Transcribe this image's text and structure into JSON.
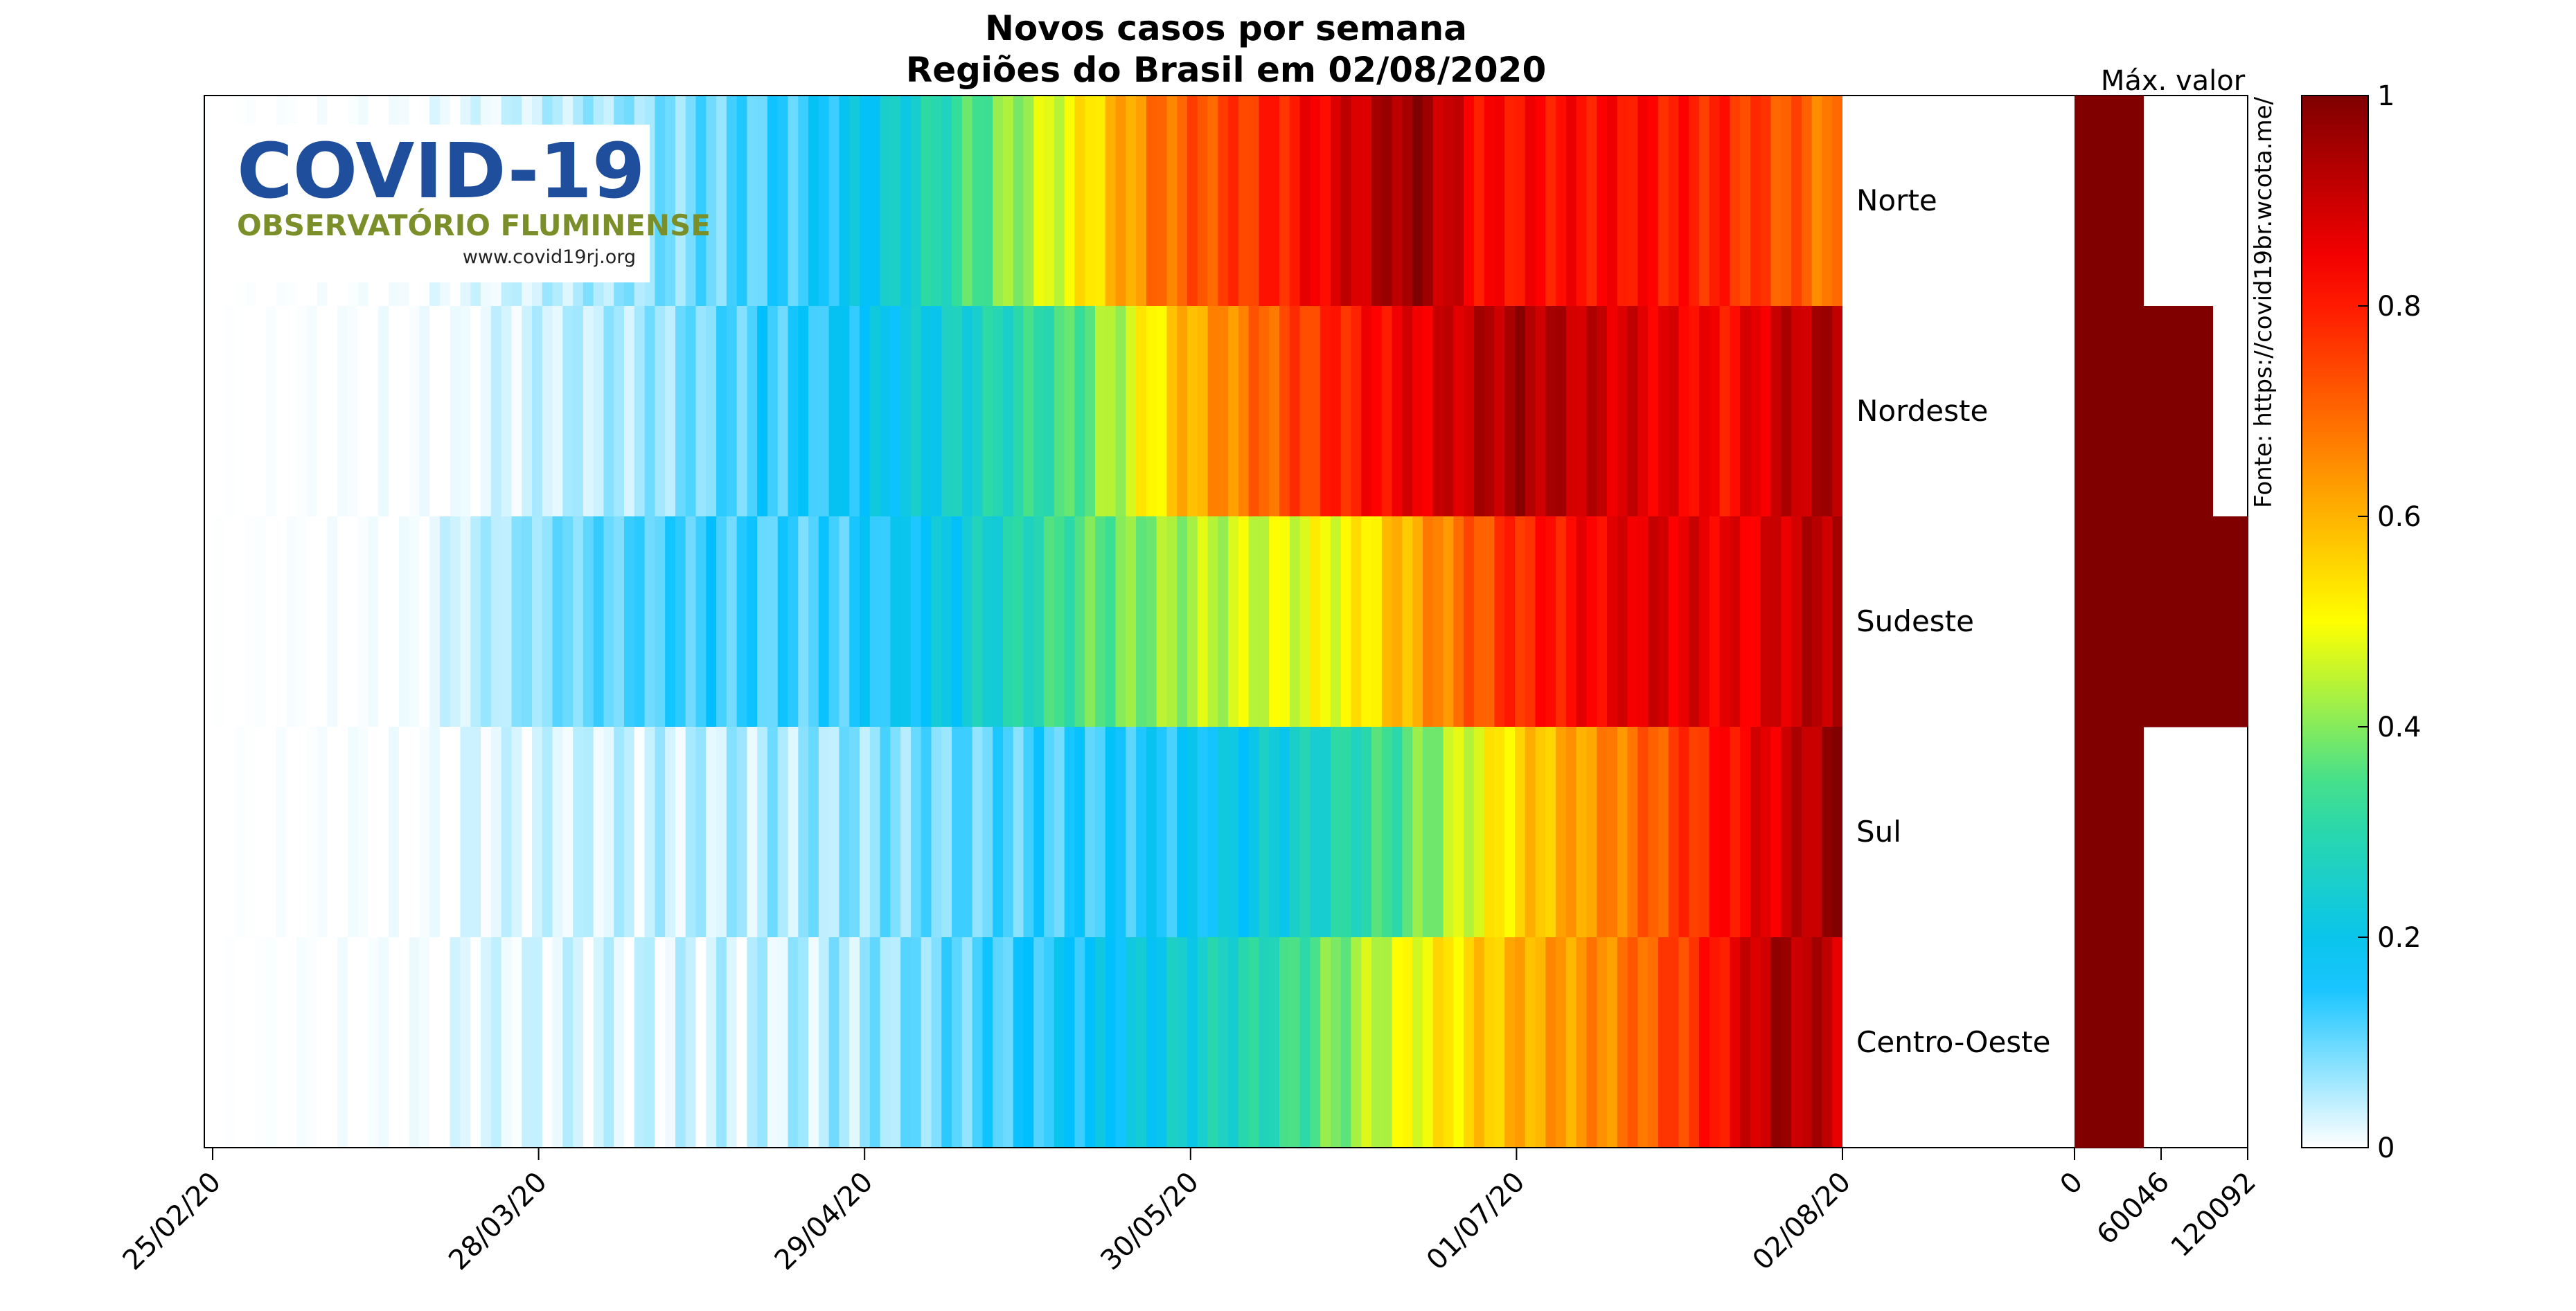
{
  "chart_data": [
    {
      "type": "heatmap",
      "title": "Novos casos por semana",
      "subtitle": "Regiões do Brasil em 02/08/2020",
      "rows": [
        "Norte",
        "Nordeste",
        "Sudeste",
        "Sul",
        "Centro-Oeste"
      ],
      "x_tick_labels": [
        "25/02/20",
        "28/03/20",
        "29/04/20",
        "30/05/20",
        "01/07/20",
        "02/08/20"
      ],
      "x_range": [
        "25/02/20",
        "02/08/20"
      ],
      "value_range": [
        0,
        1
      ],
      "colormap": [
        "#ffffff",
        "#00bfff",
        "#33dd99",
        "#ffff00",
        "#ff8000",
        "#ff0000",
        "#7f0000"
      ],
      "series": [
        {
          "name": "Norte",
          "keyframes": [
            [
              0,
              0
            ],
            [
              0.12,
              0
            ],
            [
              0.17,
              0.02
            ],
            [
              0.28,
              0.08
            ],
            [
              0.37,
              0.14
            ],
            [
              0.43,
              0.25
            ],
            [
              0.48,
              0.38
            ],
            [
              0.53,
              0.5
            ],
            [
              0.58,
              0.68
            ],
            [
              0.66,
              0.8
            ],
            [
              0.74,
              0.98
            ],
            [
              0.78,
              0.82
            ],
            [
              0.87,
              0.82
            ],
            [
              0.93,
              0.78
            ],
            [
              0.98,
              0.7
            ],
            [
              1,
              0.65
            ]
          ]
        },
        {
          "name": "Nordeste",
          "keyframes": [
            [
              0,
              0
            ],
            [
              0.16,
              0
            ],
            [
              0.17,
              0.02
            ],
            [
              0.27,
              0.06
            ],
            [
              0.33,
              0.12
            ],
            [
              0.38,
              0.15
            ],
            [
              0.44,
              0.22
            ],
            [
              0.53,
              0.35
            ],
            [
              0.56,
              0.45
            ],
            [
              0.6,
              0.6
            ],
            [
              0.67,
              0.75
            ],
            [
              0.73,
              0.85
            ],
            [
              0.8,
              0.95
            ],
            [
              0.87,
              0.88
            ],
            [
              0.93,
              0.82
            ],
            [
              0.96,
              0.9
            ],
            [
              1,
              0.95
            ]
          ]
        },
        {
          "name": "Sudeste",
          "keyframes": [
            [
              0,
              0
            ],
            [
              0.135,
              0
            ],
            [
              0.14,
              0.02
            ],
            [
              0.23,
              0.1
            ],
            [
              0.3,
              0.13
            ],
            [
              0.38,
              0.12
            ],
            [
              0.45,
              0.2
            ],
            [
              0.53,
              0.35
            ],
            [
              0.62,
              0.45
            ],
            [
              0.7,
              0.5
            ],
            [
              0.74,
              0.62
            ],
            [
              0.8,
              0.78
            ],
            [
              0.88,
              0.88
            ],
            [
              0.94,
              0.85
            ],
            [
              1,
              0.95
            ]
          ]
        },
        {
          "name": "Sul",
          "keyframes": [
            [
              0,
              0
            ],
            [
              0.15,
              0
            ],
            [
              0.155,
              0.02
            ],
            [
              0.3,
              0.04
            ],
            [
              0.39,
              0.07
            ],
            [
              0.46,
              0.1
            ],
            [
              0.53,
              0.13
            ],
            [
              0.6,
              0.16
            ],
            [
              0.67,
              0.25
            ],
            [
              0.73,
              0.35
            ],
            [
              0.8,
              0.55
            ],
            [
              0.87,
              0.68
            ],
            [
              0.93,
              0.82
            ],
            [
              0.97,
              0.9
            ],
            [
              1,
              0.98
            ]
          ]
        },
        {
          "name": "Centro-Oeste",
          "keyframes": [
            [
              0,
              0
            ],
            [
              0.15,
              0
            ],
            [
              0.155,
              0.02
            ],
            [
              0.33,
              0.03
            ],
            [
              0.4,
              0.06
            ],
            [
              0.48,
              0.12
            ],
            [
              0.55,
              0.18
            ],
            [
              0.6,
              0.24
            ],
            [
              0.66,
              0.32
            ],
            [
              0.72,
              0.46
            ],
            [
              0.8,
              0.6
            ],
            [
              0.86,
              0.66
            ],
            [
              0.92,
              0.8
            ],
            [
              0.96,
              0.95
            ],
            [
              1,
              0.9
            ]
          ]
        }
      ]
    },
    {
      "type": "bar",
      "xlabel": "Máx. valor",
      "categories": [
        "Norte",
        "Nordeste",
        "Sudeste",
        "Sul",
        "Centro-Oeste"
      ],
      "values": [
        40000,
        80000,
        100000,
        40000,
        40000
      ],
      "xlim": [
        0,
        100000
      ],
      "x_tick_labels": [
        "0",
        "60046",
        "120092"
      ],
      "color": "#800000"
    }
  ],
  "colorbar": {
    "ticks": [
      "0",
      "0.2",
      "0.4",
      "0.6",
      "0.8",
      "1"
    ]
  },
  "source": "Fonte: https://covid19br.wcota.me/",
  "logo": {
    "title": "COVID-19",
    "subtitle": "OBSERVATÓRIO FLUMINENSE",
    "url": "www.covid19rj.org"
  }
}
